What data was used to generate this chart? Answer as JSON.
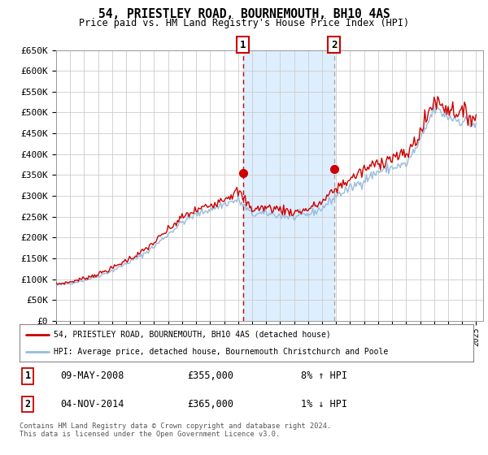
{
  "title": "54, PRIESTLEY ROAD, BOURNEMOUTH, BH10 4AS",
  "subtitle": "Price paid vs. HM Land Registry's House Price Index (HPI)",
  "legend_line1": "54, PRIESTLEY ROAD, BOURNEMOUTH, BH10 4AS (detached house)",
  "legend_line2": "HPI: Average price, detached house, Bournemouth Christchurch and Poole",
  "footer": "Contains HM Land Registry data © Crown copyright and database right 2024.\nThis data is licensed under the Open Government Licence v3.0.",
  "sale1_date": "09-MAY-2008",
  "sale1_price": 355000,
  "sale1_hpi": "8% ↑ HPI",
  "sale2_date": "04-NOV-2014",
  "sale2_price": 365000,
  "sale2_hpi": "1% ↓ HPI",
  "ylim": [
    0,
    650000
  ],
  "yticks": [
    0,
    50000,
    100000,
    150000,
    200000,
    250000,
    300000,
    350000,
    400000,
    450000,
    500000,
    550000,
    600000,
    650000
  ],
  "ytick_labels": [
    "£0",
    "£50K",
    "£100K",
    "£150K",
    "£200K",
    "£250K",
    "£300K",
    "£350K",
    "£400K",
    "£450K",
    "£500K",
    "£550K",
    "£600K",
    "£650K"
  ],
  "xlim_start": 1995.0,
  "xlim_end": 2025.5,
  "sale1_x": 2008.356,
  "sale2_x": 2014.84,
  "red_color": "#cc0000",
  "blue_color": "#99bbdd",
  "shade_color": "#ddeeff",
  "grid_color": "#cccccc",
  "background_color": "#ffffff"
}
